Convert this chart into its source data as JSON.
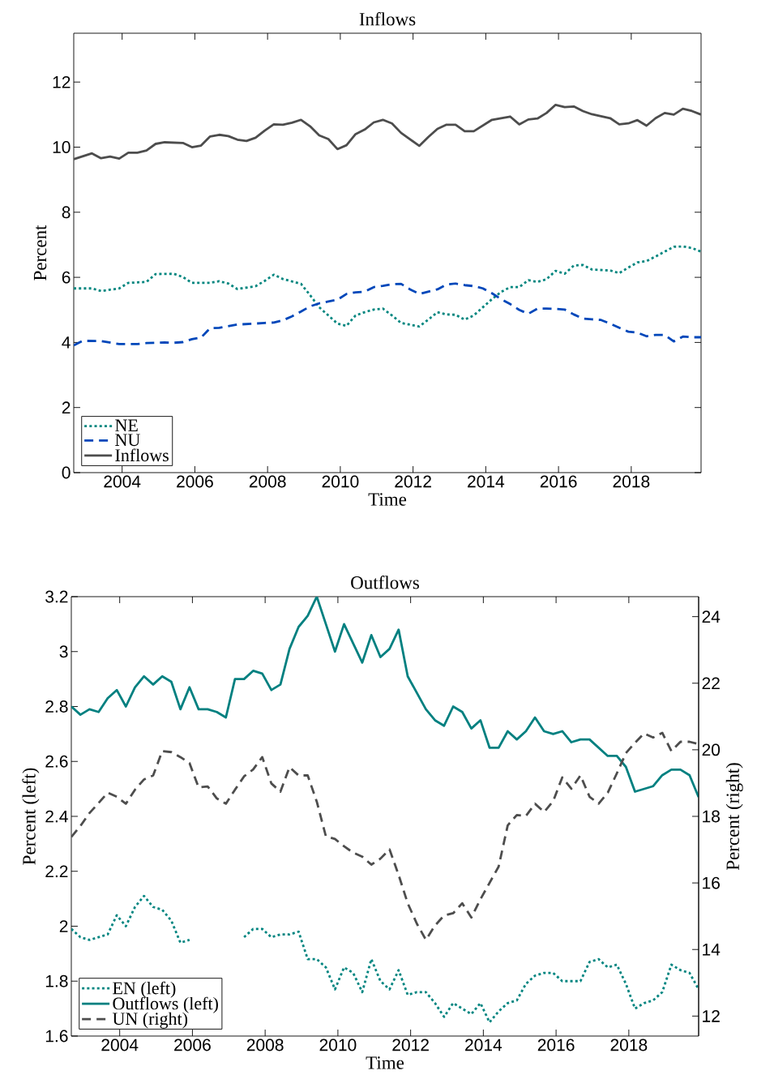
{
  "chart_data": [
    {
      "type": "line",
      "title": "Inflows",
      "xlabel": "Time",
      "ylabel": "Percent",
      "xlim": [
        2002.67,
        2019.92
      ],
      "ylim": [
        0,
        13.5
      ],
      "xticks": [
        2004,
        2006,
        2008,
        2010,
        2012,
        2014,
        2016,
        2018
      ],
      "yticks": [
        0,
        2,
        4,
        6,
        8,
        10,
        12
      ],
      "legend": "bottom left",
      "series": [
        {
          "name": "NE",
          "color": "#00867f",
          "line_style": "dotted",
          "x": [
            2002.67,
            2003.17,
            2003.42,
            2003.92,
            2004.17,
            2004.67,
            2004.92,
            2005.42,
            2005.67,
            2005.92,
            2006.42,
            2006.67,
            2006.92,
            2007.17,
            2007.67,
            2007.92,
            2008.17,
            2008.42,
            2008.92,
            2009.17,
            2009.42,
            2009.67,
            2009.92,
            2010.17,
            2010.42,
            2010.67,
            2010.92,
            2011.17,
            2011.42,
            2011.67,
            2012.17,
            2012.42,
            2012.67,
            2012.92,
            2013.17,
            2013.42,
            2013.67,
            2013.92,
            2014.17,
            2014.42,
            2014.67,
            2014.92,
            2015.17,
            2015.42,
            2015.67,
            2015.92,
            2016.17,
            2016.42,
            2016.67,
            2016.92,
            2017.42,
            2017.67,
            2017.92,
            2018.17,
            2018.42,
            2018.67,
            2018.92,
            2019.17,
            2019.42,
            2019.67,
            2019.92
          ],
          "values": [
            5.66,
            5.66,
            5.58,
            5.66,
            5.83,
            5.86,
            6.1,
            6.11,
            6.01,
            5.83,
            5.83,
            5.88,
            5.81,
            5.64,
            5.73,
            5.89,
            6.08,
            5.95,
            5.8,
            5.45,
            5.08,
            4.83,
            4.58,
            4.51,
            4.83,
            4.93,
            5.01,
            5.04,
            4.83,
            4.6,
            4.49,
            4.7,
            4.93,
            4.86,
            4.85,
            4.7,
            4.83,
            5.08,
            5.33,
            5.55,
            5.7,
            5.7,
            5.91,
            5.86,
            5.94,
            6.2,
            6.11,
            6.36,
            6.38,
            6.24,
            6.21,
            6.13,
            6.3,
            6.46,
            6.5,
            6.64,
            6.79,
            6.94,
            6.95,
            6.9,
            6.79
          ]
        },
        {
          "name": "NU",
          "color": "#0047ba",
          "line_style": "dashed",
          "x": [
            2002.67,
            2002.92,
            2003.42,
            2003.92,
            2004.42,
            2004.67,
            2005.17,
            2005.42,
            2005.67,
            2005.92,
            2006.17,
            2006.42,
            2006.67,
            2007.17,
            2007.67,
            2007.92,
            2008.17,
            2008.42,
            2008.67,
            2008.92,
            2009.17,
            2009.42,
            2009.67,
            2009.92,
            2010.17,
            2010.42,
            2010.67,
            2010.92,
            2011.17,
            2011.42,
            2011.67,
            2011.92,
            2012.17,
            2012.42,
            2012.67,
            2012.92,
            2013.17,
            2013.42,
            2013.67,
            2013.92,
            2014.17,
            2014.42,
            2014.67,
            2014.92,
            2015.17,
            2015.42,
            2015.67,
            2015.92,
            2016.17,
            2016.42,
            2016.67,
            2016.92,
            2017.17,
            2017.42,
            2017.67,
            2017.92,
            2018.17,
            2018.42,
            2018.67,
            2018.92,
            2019.17,
            2019.42,
            2019.67,
            2019.92
          ],
          "values": [
            3.91,
            4.05,
            4.04,
            3.95,
            3.95,
            3.98,
            4.0,
            3.99,
            4.01,
            4.1,
            4.15,
            4.44,
            4.45,
            4.55,
            4.58,
            4.6,
            4.61,
            4.68,
            4.8,
            4.95,
            5.11,
            5.2,
            5.26,
            5.31,
            5.49,
            5.54,
            5.56,
            5.7,
            5.74,
            5.79,
            5.8,
            5.63,
            5.49,
            5.56,
            5.63,
            5.78,
            5.81,
            5.76,
            5.73,
            5.66,
            5.51,
            5.33,
            5.18,
            5.0,
            4.88,
            5.04,
            5.04,
            5.03,
            5.01,
            4.86,
            4.73,
            4.71,
            4.69,
            4.58,
            4.45,
            4.33,
            4.3,
            4.19,
            4.23,
            4.23,
            4.03,
            4.18,
            4.16,
            4.16
          ]
        },
        {
          "name": "Inflows",
          "color": "#4d4d4d",
          "line_style": "solid",
          "x": [
            2002.67,
            2003.17,
            2003.42,
            2003.67,
            2003.92,
            2004.17,
            2004.42,
            2004.67,
            2004.92,
            2005.17,
            2005.67,
            2005.92,
            2006.17,
            2006.42,
            2006.67,
            2006.92,
            2007.17,
            2007.42,
            2007.67,
            2007.92,
            2008.17,
            2008.42,
            2008.67,
            2008.92,
            2009.17,
            2009.42,
            2009.67,
            2009.92,
            2010.17,
            2010.42,
            2010.67,
            2010.92,
            2011.17,
            2011.42,
            2011.67,
            2012.17,
            2012.42,
            2012.67,
            2012.92,
            2013.17,
            2013.42,
            2013.67,
            2014.17,
            2014.67,
            2014.92,
            2015.17,
            2015.42,
            2015.67,
            2015.92,
            2016.17,
            2016.42,
            2016.67,
            2016.92,
            2017.42,
            2017.67,
            2017.92,
            2018.17,
            2018.42,
            2018.67,
            2018.92,
            2019.17,
            2019.42,
            2019.67,
            2019.92
          ],
          "values": [
            9.63,
            9.81,
            9.66,
            9.71,
            9.65,
            9.83,
            9.83,
            9.9,
            10.1,
            10.15,
            10.13,
            10.0,
            10.05,
            10.33,
            10.38,
            10.34,
            10.23,
            10.19,
            10.29,
            10.51,
            10.7,
            10.69,
            10.75,
            10.84,
            10.64,
            10.36,
            10.25,
            9.94,
            10.06,
            10.4,
            10.54,
            10.76,
            10.84,
            10.73,
            10.44,
            10.04,
            10.31,
            10.56,
            10.69,
            10.69,
            10.49,
            10.49,
            10.84,
            10.94,
            10.7,
            10.85,
            10.88,
            11.05,
            11.3,
            11.23,
            11.25,
            11.11,
            11.01,
            10.89,
            10.7,
            10.73,
            10.83,
            10.66,
            10.89,
            11.05,
            11.0,
            11.18,
            11.11,
            11.0
          ]
        }
      ]
    },
    {
      "type": "line",
      "title": "Outflows",
      "xlabel": "Time",
      "ylabel": "Percent (left)",
      "y2label": "Percent (right)",
      "xlim": [
        2002.67,
        2019.92
      ],
      "ylim": [
        1.6,
        3.2
      ],
      "y2lim": [
        11.4,
        24.6
      ],
      "xticks": [
        2004,
        2006,
        2008,
        2010,
        2012,
        2014,
        2016,
        2018
      ],
      "yticks": [
        1.6,
        1.8,
        2,
        2.2,
        2.4,
        2.6,
        2.8,
        3,
        3.2
      ],
      "y2ticks": [
        12,
        14,
        16,
        18,
        20,
        22,
        24
      ],
      "legend": "bottom left",
      "x": [
        2002.67,
        2002.92,
        2003.17,
        2003.42,
        2003.67,
        2003.92,
        2004.17,
        2004.42,
        2004.67,
        2004.92,
        2005.17,
        2005.42,
        2005.67,
        2005.92,
        2006.17,
        2006.42,
        2006.67,
        2006.92,
        2007.17,
        2007.42,
        2007.67,
        2007.92,
        2008.17,
        2008.42,
        2008.67,
        2008.92,
        2009.17,
        2009.42,
        2009.67,
        2009.92,
        2010.17,
        2010.42,
        2010.67,
        2010.92,
        2011.17,
        2011.42,
        2011.67,
        2011.92,
        2012.17,
        2012.42,
        2012.67,
        2012.92,
        2013.17,
        2013.42,
        2013.67,
        2013.92,
        2014.17,
        2014.42,
        2014.67,
        2014.92,
        2015.17,
        2015.42,
        2015.67,
        2015.92,
        2016.17,
        2016.42,
        2016.67,
        2016.92,
        2017.17,
        2017.42,
        2017.67,
        2017.92,
        2018.17,
        2018.42,
        2018.67,
        2018.92,
        2019.17,
        2019.42,
        2019.67,
        2019.92
      ],
      "series": [
        {
          "name": "EN (left)",
          "color": "#008580",
          "line_style": "dotted",
          "values": [
            1.99,
            1.96,
            1.95,
            1.96,
            1.97,
            2.04,
            2.0,
            2.07,
            2.11,
            2.07,
            2.06,
            2.02,
            1.94,
            1.95,
            null,
            null,
            null,
            null,
            null,
            1.96,
            1.99,
            1.99,
            1.96,
            1.97,
            1.97,
            1.98,
            1.88,
            1.88,
            1.85,
            1.77,
            1.85,
            1.83,
            1.76,
            1.88,
            1.8,
            1.77,
            1.84,
            1.75,
            1.76,
            1.76,
            1.72,
            1.67,
            1.72,
            1.7,
            1.68,
            1.72,
            1.65,
            1.69,
            1.72,
            1.73,
            1.79,
            1.82,
            1.83,
            1.83,
            1.8,
            1.8,
            1.8,
            1.87,
            1.88,
            1.85,
            1.86,
            1.79,
            1.7,
            1.72,
            1.73,
            1.76,
            1.86,
            1.84,
            1.83,
            1.77
          ]
        },
        {
          "name": "Outflows (left)",
          "color": "#008080",
          "line_style": "solid",
          "values": [
            2.8,
            2.77,
            2.79,
            2.78,
            2.83,
            2.86,
            2.8,
            2.87,
            2.91,
            2.88,
            2.91,
            2.89,
            2.79,
            2.87,
            2.79,
            2.79,
            2.78,
            2.76,
            2.9,
            2.9,
            2.93,
            2.92,
            2.86,
            2.88,
            3.01,
            3.09,
            3.13,
            3.2,
            3.1,
            3.0,
            3.1,
            3.03,
            2.96,
            3.06,
            2.98,
            3.01,
            3.08,
            2.91,
            2.85,
            2.79,
            2.75,
            2.73,
            2.8,
            2.78,
            2.72,
            2.75,
            2.65,
            2.65,
            2.71,
            2.68,
            2.71,
            2.76,
            2.71,
            2.7,
            2.71,
            2.67,
            2.68,
            2.68,
            2.65,
            2.62,
            2.62,
            2.58,
            2.49,
            2.5,
            2.51,
            2.55,
            2.57,
            2.57,
            2.55,
            2.47
          ]
        },
        {
          "name": "UN (right)",
          "color": "#4d4d4d",
          "line_style": "dashed",
          "axis": "y2",
          "values": [
            17.38,
            17.71,
            18.1,
            18.4,
            18.71,
            18.59,
            18.38,
            18.8,
            19.11,
            19.23,
            19.96,
            19.93,
            19.78,
            19.6,
            18.87,
            18.9,
            18.54,
            18.38,
            18.8,
            19.2,
            19.41,
            19.78,
            18.99,
            18.74,
            19.48,
            19.23,
            19.23,
            18.44,
            17.4,
            17.32,
            17.1,
            16.91,
            16.79,
            16.55,
            16.73,
            17.01,
            16.24,
            15.39,
            14.78,
            14.29,
            14.72,
            15.02,
            15.09,
            15.39,
            14.96,
            15.51,
            16.0,
            16.49,
            17.73,
            18.04,
            18.01,
            18.38,
            18.13,
            18.46,
            19.17,
            18.83,
            19.23,
            18.59,
            18.38,
            18.71,
            19.29,
            19.9,
            20.21,
            20.49,
            20.37,
            20.51,
            19.96,
            20.24,
            20.24,
            20.17
          ]
        }
      ]
    }
  ]
}
